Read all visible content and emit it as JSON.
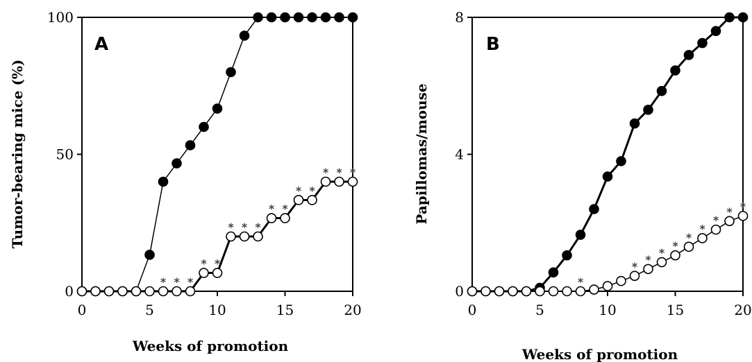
{
  "chart_data": [
    {
      "type": "line",
      "panel_label": "A",
      "xlabel": "Weeks of promotion",
      "ylabel": "Tumor-bearing  mice  (%)",
      "xlim": [
        0,
        20
      ],
      "ylim": [
        0,
        100
      ],
      "xticks": [
        0,
        5,
        10,
        15,
        20
      ],
      "yticks": [
        0,
        50,
        100
      ],
      "grid": false,
      "series": [
        {
          "marker": "filled-circle",
          "x": [
            0,
            1,
            2,
            3,
            4,
            5,
            6,
            7,
            8,
            9,
            10,
            11,
            12,
            13,
            14,
            15,
            16,
            17,
            18,
            19,
            20
          ],
          "y": [
            0,
            0,
            0,
            0,
            0,
            13.3,
            40,
            46.7,
            53.3,
            60,
            66.7,
            80,
            93.3,
            100,
            100,
            100,
            100,
            100,
            100,
            100,
            100
          ]
        },
        {
          "marker": "open-circle",
          "x": [
            0,
            1,
            2,
            3,
            4,
            5,
            6,
            7,
            8,
            9,
            10,
            11,
            12,
            13,
            14,
            15,
            16,
            17,
            18,
            19,
            20
          ],
          "y": [
            0,
            0,
            0,
            0,
            0,
            0,
            0,
            0,
            0,
            6.7,
            6.7,
            20,
            20,
            20,
            26.7,
            26.7,
            33.3,
            33.3,
            40,
            40,
            40
          ]
        }
      ],
      "annotations": [
        {
          "text": "*",
          "x": 6,
          "y": 0
        },
        {
          "text": "*",
          "x": 7,
          "y": 0
        },
        {
          "text": "*",
          "x": 8,
          "y": 0
        },
        {
          "text": "*",
          "x": 9,
          "y": 6.7
        },
        {
          "text": "*",
          "x": 10,
          "y": 6.7
        },
        {
          "text": "*",
          "x": 11,
          "y": 20
        },
        {
          "text": "*",
          "x": 12,
          "y": 20
        },
        {
          "text": "*",
          "x": 13,
          "y": 20
        },
        {
          "text": "*",
          "x": 14,
          "y": 26.7
        },
        {
          "text": "*",
          "x": 15,
          "y": 26.7
        },
        {
          "text": "*",
          "x": 16,
          "y": 33.3
        },
        {
          "text": "*",
          "x": 17,
          "y": 33.3
        },
        {
          "text": "*",
          "x": 18,
          "y": 40
        },
        {
          "text": "*",
          "x": 19,
          "y": 40
        },
        {
          "text": "*",
          "x": 20,
          "y": 40
        }
      ]
    },
    {
      "type": "line",
      "panel_label": "B",
      "xlabel": "Weeks of promotion",
      "ylabel": "Papillomas/mouse",
      "xlim": [
        0,
        20
      ],
      "ylim": [
        0,
        8
      ],
      "xticks": [
        0,
        5,
        10,
        15,
        20
      ],
      "yticks": [
        0,
        4,
        8
      ],
      "grid": false,
      "series": [
        {
          "marker": "filled-circle",
          "x": [
            0,
            1,
            2,
            3,
            4,
            5,
            6,
            7,
            8,
            9,
            10,
            11,
            12,
            13,
            14,
            15,
            16,
            17,
            18,
            19,
            20
          ],
          "y": [
            0,
            0,
            0,
            0,
            0,
            0.1,
            0.55,
            1.05,
            1.65,
            2.4,
            3.35,
            3.8,
            4.9,
            5.3,
            5.85,
            6.45,
            6.9,
            7.25,
            7.6,
            8.0,
            8.0
          ]
        },
        {
          "marker": "open-circle",
          "x": [
            0,
            1,
            2,
            3,
            4,
            5,
            6,
            7,
            8,
            9,
            10,
            11,
            12,
            13,
            14,
            15,
            16,
            17,
            18,
            19,
            20
          ],
          "y": [
            0,
            0,
            0,
            0,
            0,
            0,
            0,
            0,
            0,
            0.05,
            0.15,
            0.3,
            0.45,
            0.65,
            0.85,
            1.05,
            1.3,
            1.55,
            1.8,
            2.05,
            2.2
          ]
        }
      ],
      "annotations": [
        {
          "text": "*",
          "x": 8,
          "y": 0
        },
        {
          "text": "*",
          "x": 12,
          "y": 0.45
        },
        {
          "text": "*",
          "x": 13,
          "y": 0.65
        },
        {
          "text": "*",
          "x": 14,
          "y": 0.85
        },
        {
          "text": "*",
          "x": 15,
          "y": 1.05
        },
        {
          "text": "*",
          "x": 16,
          "y": 1.3
        },
        {
          "text": "*",
          "x": 17,
          "y": 1.55
        },
        {
          "text": "*",
          "x": 18,
          "y": 1.8
        },
        {
          "text": "*",
          "x": 19,
          "y": 2.05
        },
        {
          "text": "*",
          "x": 20,
          "y": 2.2
        }
      ]
    }
  ]
}
